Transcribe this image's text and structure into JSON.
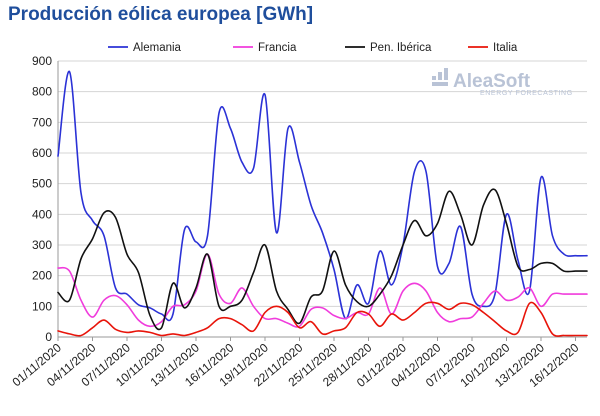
{
  "chart_data": {
    "type": "line",
    "title": "Producción eólica europea [GWh]",
    "xlabel": "",
    "ylabel": "",
    "ylim": [
      0,
      900
    ],
    "yticks": [
      0,
      100,
      200,
      300,
      400,
      500,
      600,
      700,
      800,
      900
    ],
    "grid": "horizontal",
    "legend_position": "top",
    "x": [
      "01/11/2020",
      "02/11/2020",
      "03/11/2020",
      "04/11/2020",
      "05/11/2020",
      "06/11/2020",
      "07/11/2020",
      "08/11/2020",
      "09/11/2020",
      "10/11/2020",
      "11/11/2020",
      "12/11/2020",
      "13/11/2020",
      "14/11/2020",
      "15/11/2020",
      "16/11/2020",
      "17/11/2020",
      "18/11/2020",
      "19/11/2020",
      "20/11/2020",
      "21/11/2020",
      "22/11/2020",
      "23/11/2020",
      "24/11/2020",
      "25/11/2020",
      "26/11/2020",
      "27/11/2020",
      "28/11/2020",
      "29/11/2020",
      "30/11/2020",
      "01/12/2020",
      "02/12/2020",
      "03/12/2020",
      "04/12/2020",
      "05/12/2020",
      "06/12/2020",
      "07/12/2020",
      "08/12/2020",
      "09/12/2020",
      "10/12/2020",
      "11/12/2020",
      "12/12/2020",
      "13/12/2020",
      "14/12/2020",
      "15/12/2020",
      "16/12/2020",
      "17/12/2020"
    ],
    "xtick_labels": [
      "01/11/2020",
      "04/11/2020",
      "07/11/2020",
      "10/11/2020",
      "13/11/2020",
      "16/11/2020",
      "19/11/2020",
      "22/11/2020",
      "25/11/2020",
      "28/11/2020",
      "01/12/2020",
      "04/12/2020",
      "07/12/2020",
      "10/12/2020",
      "13/12/2020",
      "16/12/2020"
    ],
    "series": [
      {
        "name": "Alemania",
        "color": "#2b32d6",
        "values": [
          590,
          865,
          470,
          380,
          330,
          160,
          140,
          105,
          95,
          75,
          75,
          350,
          310,
          330,
          730,
          680,
          570,
          550,
          790,
          340,
          680,
          570,
          430,
          340,
          220,
          60,
          170,
          110,
          280,
          170,
          300,
          540,
          540,
          230,
          240,
          360,
          140,
          100,
          140,
          400,
          250,
          150,
          520,
          330,
          270,
          265,
          265
        ]
      },
      {
        "name": "Francia",
        "color": "#f03cdc",
        "values": [
          225,
          215,
          120,
          65,
          120,
          135,
          105,
          55,
          35,
          50,
          100,
          105,
          150,
          270,
          140,
          110,
          160,
          100,
          60,
          60,
          45,
          35,
          90,
          95,
          70,
          60,
          80,
          75,
          160,
          75,
          150,
          175,
          150,
          80,
          50,
          60,
          65,
          110,
          150,
          120,
          130,
          160,
          100,
          140,
          140,
          140,
          140
        ]
      },
      {
        "name": "Pen. Ibérica",
        "color": "#111111",
        "values": [
          145,
          120,
          255,
          320,
          405,
          390,
          270,
          210,
          70,
          30,
          175,
          95,
          160,
          270,
          100,
          100,
          120,
          210,
          300,
          150,
          90,
          45,
          130,
          150,
          280,
          170,
          115,
          100,
          140,
          200,
          300,
          380,
          330,
          370,
          475,
          400,
          300,
          430,
          480,
          370,
          230,
          220,
          240,
          240,
          215,
          215,
          215
        ]
      },
      {
        "name": "Italia",
        "color": "#e8140a",
        "values": [
          20,
          10,
          5,
          30,
          55,
          25,
          15,
          20,
          15,
          5,
          10,
          5,
          15,
          30,
          60,
          60,
          40,
          20,
          80,
          100,
          80,
          30,
          50,
          10,
          20,
          30,
          80,
          75,
          35,
          75,
          55,
          80,
          110,
          110,
          90,
          110,
          105,
          80,
          50,
          20,
          15,
          110,
          80,
          10,
          5,
          5,
          5
        ]
      }
    ]
  },
  "watermark": {
    "name": "AleaSoft",
    "tagline": "ENERGY FORECASTING"
  }
}
